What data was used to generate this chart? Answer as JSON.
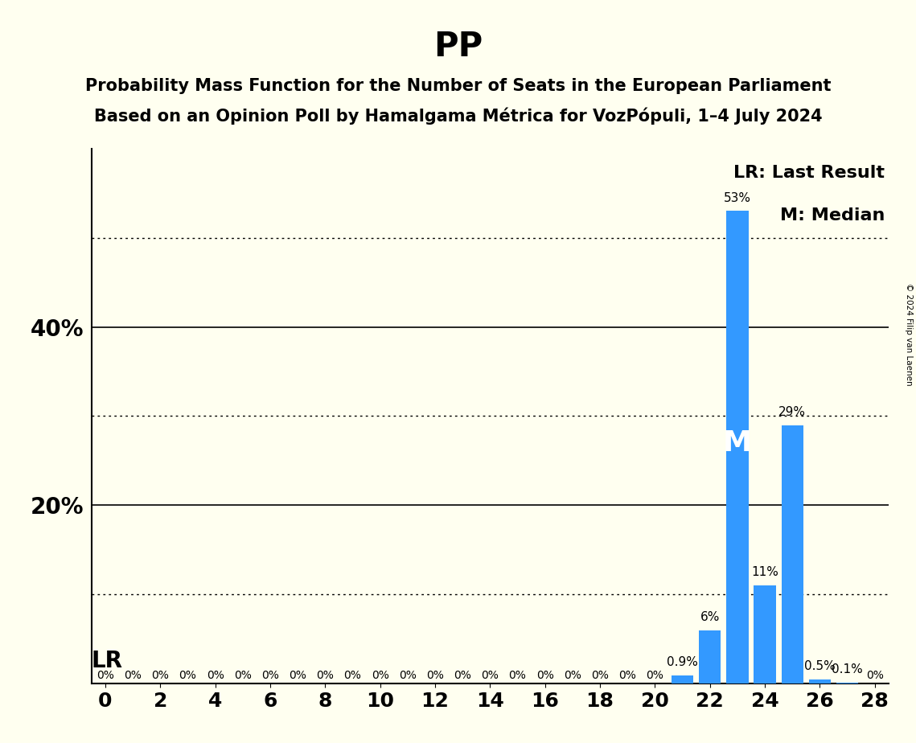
{
  "title": "PP",
  "subtitle1": "Probability Mass Function for the Number of Seats in the European Parliament",
  "subtitle2": "Based on an Opinion Poll by Hamalgama Métrica for VozPópuli, 1–4 July 2024",
  "copyright": "© 2024 Filip van Laenen",
  "seats": [
    0,
    1,
    2,
    3,
    4,
    5,
    6,
    7,
    8,
    9,
    10,
    11,
    12,
    13,
    14,
    15,
    16,
    17,
    18,
    19,
    20,
    21,
    22,
    23,
    24,
    25,
    26,
    27,
    28
  ],
  "probabilities": [
    0.0,
    0.0,
    0.0,
    0.0,
    0.0,
    0.0,
    0.0,
    0.0,
    0.0,
    0.0,
    0.0,
    0.0,
    0.0,
    0.0,
    0.0,
    0.0,
    0.0,
    0.0,
    0.0,
    0.0,
    0.0,
    0.9,
    6.0,
    53.0,
    11.0,
    29.0,
    0.5,
    0.1,
    0.0
  ],
  "bar_color": "#3399ff",
  "background_color": "#fffff0",
  "last_result_seat": 23,
  "median_seat": 23,
  "xlim": [
    -0.5,
    28.5
  ],
  "ylim": [
    0,
    60
  ],
  "yticks": [
    0,
    20,
    40
  ],
  "dotted_lines": [
    10,
    30,
    50
  ],
  "xticks": [
    0,
    2,
    4,
    6,
    8,
    10,
    12,
    14,
    16,
    18,
    20,
    22,
    24,
    26,
    28
  ],
  "lr_label": "LR",
  "lr_legend": "LR: Last Result",
  "m_label": "M",
  "m_legend": "M: Median",
  "title_fontsize": 30,
  "subtitle_fontsize": 15,
  "tick_fontsize": 18,
  "bar_label_fontsize": 11,
  "legend_fontsize": 16,
  "ytick_fontsize": 20
}
